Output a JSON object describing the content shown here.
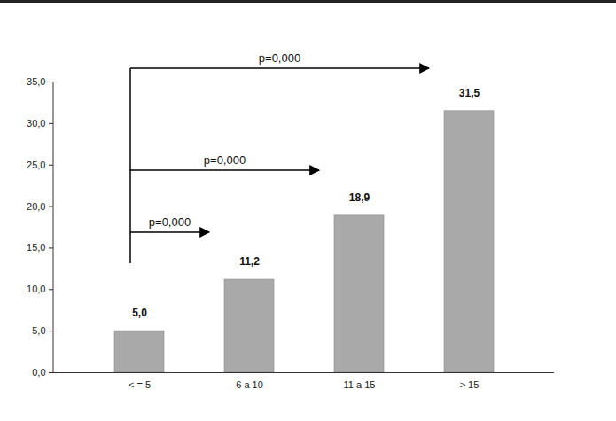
{
  "chart_data": {
    "type": "bar",
    "categories": [
      "< = 5",
      "6 a 10",
      "11 a 15",
      "> 15"
    ],
    "values": [
      5.0,
      11.2,
      18.9,
      31.5
    ],
    "value_labels": [
      "5,0",
      "11,2",
      "18,9",
      "31,5"
    ],
    "data_labels": true,
    "color": "#a9a9a9",
    "ylim": [
      0,
      35
    ],
    "yticks": [
      {
        "value": 0,
        "label": "0,0"
      },
      {
        "value": 5,
        "label": "5,0"
      },
      {
        "value": 10,
        "label": "10,0"
      },
      {
        "value": 15,
        "label": "15,0"
      },
      {
        "value": 20,
        "label": "20,0"
      },
      {
        "value": 25,
        "label": "25,0"
      },
      {
        "value": 30,
        "label": "30,0"
      },
      {
        "value": 35,
        "label": "35,0"
      }
    ],
    "grid": false,
    "annotations": [
      {
        "text": "p=0,000",
        "from": "< = 5",
        "to": "> 15"
      },
      {
        "text": "p=0,000",
        "from": "< = 5",
        "to": "11 a 15"
      },
      {
        "text": "p=0,000",
        "from": "< = 5",
        "to": "6 a 10"
      }
    ]
  }
}
